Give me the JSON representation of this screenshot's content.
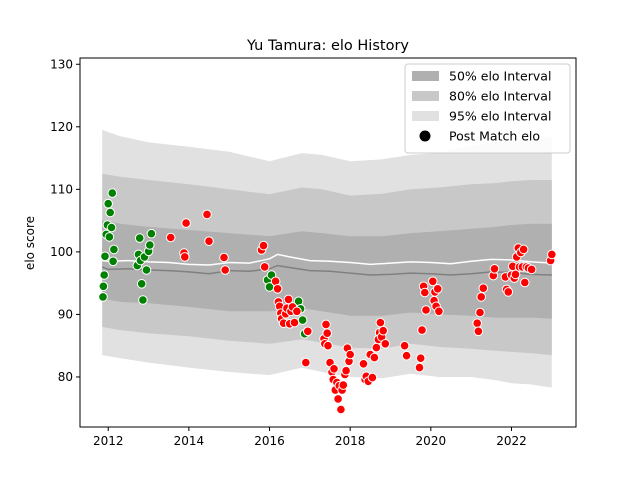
{
  "chart_data": {
    "type": "line",
    "title": "Yu Tamura: elo History",
    "xlabel": "",
    "ylabel": "elo score",
    "xlim": [
      2011.3,
      2023.6
    ],
    "ylim": [
      72,
      131
    ],
    "x_ticks": [
      2012,
      2014,
      2016,
      2018,
      2020,
      2022
    ],
    "y_ticks": [
      80,
      90,
      100,
      110,
      120,
      130
    ],
    "grid": false,
    "legend_placement": "top-right",
    "legend": [
      {
        "label": "50% elo Interval",
        "kind": "band",
        "color": "#b0b0b0"
      },
      {
        "label": "80% elo Interval",
        "kind": "band",
        "color": "#c8c8c8"
      },
      {
        "label": "95% elo Interval",
        "kind": "band",
        "color": "#e1e1e1"
      },
      {
        "label": "Post Match elo",
        "kind": "marker",
        "color": "#000000"
      }
    ],
    "colors": {
      "win": "#008000",
      "loss": "#ff0000",
      "median_line": "#808080",
      "mean_line": "#ffffff"
    },
    "intervals": {
      "x": [
        2011.85,
        2012.3,
        2013.0,
        2014.0,
        2015.0,
        2016.0,
        2016.8,
        2017.3,
        2018.0,
        2018.8,
        2019.5,
        2020.2,
        2021.0,
        2021.6,
        2022.0,
        2022.5,
        2023.0
      ],
      "lo95": [
        83.5,
        83.0,
        82.3,
        81.5,
        80.8,
        80.3,
        81.5,
        80.8,
        80.0,
        79.8,
        80.5,
        80.0,
        80.0,
        79.5,
        79.0,
        78.8,
        78.3
      ],
      "hi95": [
        119.5,
        118.5,
        117.5,
        116.8,
        116.0,
        114.5,
        115.8,
        115.5,
        114.5,
        114.8,
        115.5,
        115.8,
        117.0,
        117.5,
        118.0,
        118.0,
        118.5
      ],
      "lo80": [
        88.0,
        87.5,
        87.0,
        86.5,
        85.8,
        85.3,
        86.0,
        85.5,
        84.7,
        84.5,
        85.3,
        84.8,
        84.5,
        84.2,
        84.0,
        83.8,
        83.5
      ],
      "hi80": [
        112.5,
        112.0,
        111.5,
        110.8,
        110.0,
        109.2,
        110.3,
        110.0,
        109.0,
        109.3,
        110.0,
        110.3,
        110.8,
        111.0,
        111.3,
        111.5,
        111.5
      ],
      "lo50": [
        92.5,
        92.0,
        91.8,
        91.2,
        90.5,
        90.5,
        91.0,
        90.5,
        89.8,
        89.8,
        90.3,
        90.0,
        89.8,
        89.5,
        89.5,
        89.5,
        89.3
      ],
      "hi50": [
        105.0,
        104.5,
        104.0,
        103.5,
        103.0,
        102.5,
        103.3,
        103.0,
        102.5,
        102.5,
        103.0,
        103.3,
        103.7,
        104.0,
        104.3,
        104.5,
        104.5
      ]
    },
    "median_line": {
      "x": [
        2011.85,
        2012.0,
        2012.5,
        2013.0,
        2013.5,
        2014.0,
        2014.5,
        2015.0,
        2015.5,
        2016.0,
        2016.2,
        2016.5,
        2017.0,
        2017.5,
        2018.0,
        2018.5,
        2019.0,
        2019.5,
        2020.0,
        2020.5,
        2021.0,
        2021.5,
        2022.0,
        2022.5,
        2023.0
      ],
      "y": [
        97.6,
        97.2,
        97.3,
        97.1,
        97.0,
        96.8,
        96.5,
        97.0,
        96.9,
        97.3,
        97.8,
        97.5,
        97.0,
        96.9,
        96.6,
        96.3,
        96.4,
        96.6,
        96.5,
        96.3,
        96.5,
        96.8,
        96.7,
        96.4,
        96.3
      ]
    },
    "mean_line": {
      "x": [
        2011.85,
        2012.0,
        2012.5,
        2013.0,
        2013.5,
        2014.0,
        2014.5,
        2015.0,
        2015.5,
        2016.0,
        2016.2,
        2016.5,
        2017.0,
        2017.5,
        2018.0,
        2018.5,
        2019.0,
        2019.5,
        2020.0,
        2020.5,
        2021.0,
        2021.5,
        2022.0,
        2022.5,
        2023.0
      ],
      "y": [
        98.6,
        98.5,
        98.6,
        98.4,
        98.3,
        98.0,
        97.9,
        98.3,
        98.2,
        98.9,
        99.6,
        99.2,
        98.6,
        98.5,
        98.3,
        98.0,
        98.2,
        98.4,
        98.3,
        98.1,
        98.5,
        98.8,
        98.7,
        98.4,
        98.2
      ]
    },
    "series": [
      {
        "name": "win",
        "points": [
          [
            2011.87,
            92.8
          ],
          [
            2011.88,
            94.5
          ],
          [
            2011.9,
            96.3
          ],
          [
            2011.92,
            99.3
          ],
          [
            2011.95,
            102.8
          ],
          [
            2011.98,
            104.3
          ],
          [
            2012.0,
            107.7
          ],
          [
            2012.03,
            102.4
          ],
          [
            2012.05,
            106.3
          ],
          [
            2012.08,
            103.9
          ],
          [
            2012.1,
            109.4
          ],
          [
            2012.12,
            98.5
          ],
          [
            2012.14,
            100.4
          ],
          [
            2012.72,
            97.8
          ],
          [
            2012.75,
            99.6
          ],
          [
            2012.78,
            102.2
          ],
          [
            2012.8,
            98.6
          ],
          [
            2012.83,
            94.9
          ],
          [
            2012.86,
            92.3
          ],
          [
            2012.9,
            99.2
          ],
          [
            2012.95,
            97.1
          ],
          [
            2013.0,
            100.1
          ],
          [
            2013.03,
            101.1
          ],
          [
            2013.07,
            102.9
          ],
          [
            2015.95,
            95.5
          ],
          [
            2016.0,
            94.4
          ],
          [
            2016.05,
            96.3
          ],
          [
            2016.72,
            92.1
          ],
          [
            2016.77,
            90.9
          ],
          [
            2016.82,
            89.1
          ],
          [
            2016.87,
            86.9
          ]
        ]
      },
      {
        "name": "loss",
        "points": [
          [
            2013.55,
            102.3
          ],
          [
            2013.88,
            99.8
          ],
          [
            2013.9,
            99.2
          ],
          [
            2013.93,
            104.6
          ],
          [
            2014.45,
            106.0
          ],
          [
            2014.5,
            101.7
          ],
          [
            2014.87,
            99.1
          ],
          [
            2014.9,
            97.1
          ],
          [
            2015.8,
            100.3
          ],
          [
            2015.85,
            101.0
          ],
          [
            2015.88,
            97.6
          ],
          [
            2016.15,
            95.3
          ],
          [
            2016.2,
            94.1
          ],
          [
            2016.22,
            92.0
          ],
          [
            2016.25,
            91.3
          ],
          [
            2016.28,
            90.2
          ],
          [
            2016.3,
            89.3
          ],
          [
            2016.35,
            88.6
          ],
          [
            2016.4,
            90.1
          ],
          [
            2016.43,
            91.0
          ],
          [
            2016.47,
            92.4
          ],
          [
            2016.5,
            88.5
          ],
          [
            2016.53,
            90.5
          ],
          [
            2016.57,
            91.2
          ],
          [
            2016.62,
            88.7
          ],
          [
            2016.68,
            90.5
          ],
          [
            2016.9,
            82.3
          ],
          [
            2016.95,
            87.3
          ],
          [
            2017.35,
            86.1
          ],
          [
            2017.37,
            85.3
          ],
          [
            2017.4,
            88.4
          ],
          [
            2017.43,
            87.0
          ],
          [
            2017.45,
            85.0
          ],
          [
            2017.5,
            82.3
          ],
          [
            2017.55,
            80.8
          ],
          [
            2017.58,
            79.6
          ],
          [
            2017.6,
            81.3
          ],
          [
            2017.63,
            77.9
          ],
          [
            2017.67,
            79.1
          ],
          [
            2017.7,
            76.5
          ],
          [
            2017.73,
            78.6
          ],
          [
            2017.77,
            74.8
          ],
          [
            2017.8,
            77.9
          ],
          [
            2017.83,
            78.7
          ],
          [
            2017.87,
            80.4
          ],
          [
            2017.9,
            81.0
          ],
          [
            2017.93,
            84.6
          ],
          [
            2017.97,
            82.5
          ],
          [
            2018.0,
            83.6
          ],
          [
            2018.33,
            82.1
          ],
          [
            2018.37,
            79.6
          ],
          [
            2018.4,
            80.1
          ],
          [
            2018.45,
            79.3
          ],
          [
            2018.5,
            83.6
          ],
          [
            2018.55,
            79.9
          ],
          [
            2018.6,
            83.1
          ],
          [
            2018.65,
            84.7
          ],
          [
            2018.7,
            86.0
          ],
          [
            2018.73,
            87.1
          ],
          [
            2018.75,
            88.7
          ],
          [
            2018.78,
            86.4
          ],
          [
            2018.82,
            87.4
          ],
          [
            2018.87,
            85.3
          ],
          [
            2019.35,
            85.0
          ],
          [
            2019.4,
            83.4
          ],
          [
            2019.72,
            81.5
          ],
          [
            2019.75,
            83.0
          ],
          [
            2019.78,
            87.5
          ],
          [
            2019.82,
            94.5
          ],
          [
            2019.85,
            93.5
          ],
          [
            2019.88,
            90.7
          ],
          [
            2020.05,
            95.3
          ],
          [
            2020.08,
            92.2
          ],
          [
            2020.1,
            93.6
          ],
          [
            2020.13,
            91.3
          ],
          [
            2020.17,
            94.1
          ],
          [
            2020.2,
            90.5
          ],
          [
            2021.15,
            88.6
          ],
          [
            2021.18,
            87.3
          ],
          [
            2021.22,
            90.3
          ],
          [
            2021.25,
            92.8
          ],
          [
            2021.3,
            94.2
          ],
          [
            2021.55,
            96.2
          ],
          [
            2021.58,
            97.3
          ],
          [
            2021.85,
            96.0
          ],
          [
            2021.88,
            94.0
          ],
          [
            2021.92,
            93.6
          ],
          [
            2022.0,
            96.3
          ],
          [
            2022.03,
            97.7
          ],
          [
            2022.07,
            95.8
          ],
          [
            2022.1,
            96.4
          ],
          [
            2022.13,
            99.2
          ],
          [
            2022.17,
            100.6
          ],
          [
            2022.2,
            97.6
          ],
          [
            2022.23,
            99.9
          ],
          [
            2022.27,
            97.6
          ],
          [
            2022.3,
            100.4
          ],
          [
            2022.33,
            95.1
          ],
          [
            2022.37,
            97.6
          ],
          [
            2022.42,
            97.4
          ],
          [
            2022.5,
            97.2
          ],
          [
            2022.97,
            98.6
          ],
          [
            2023.0,
            99.6
          ]
        ]
      }
    ]
  }
}
